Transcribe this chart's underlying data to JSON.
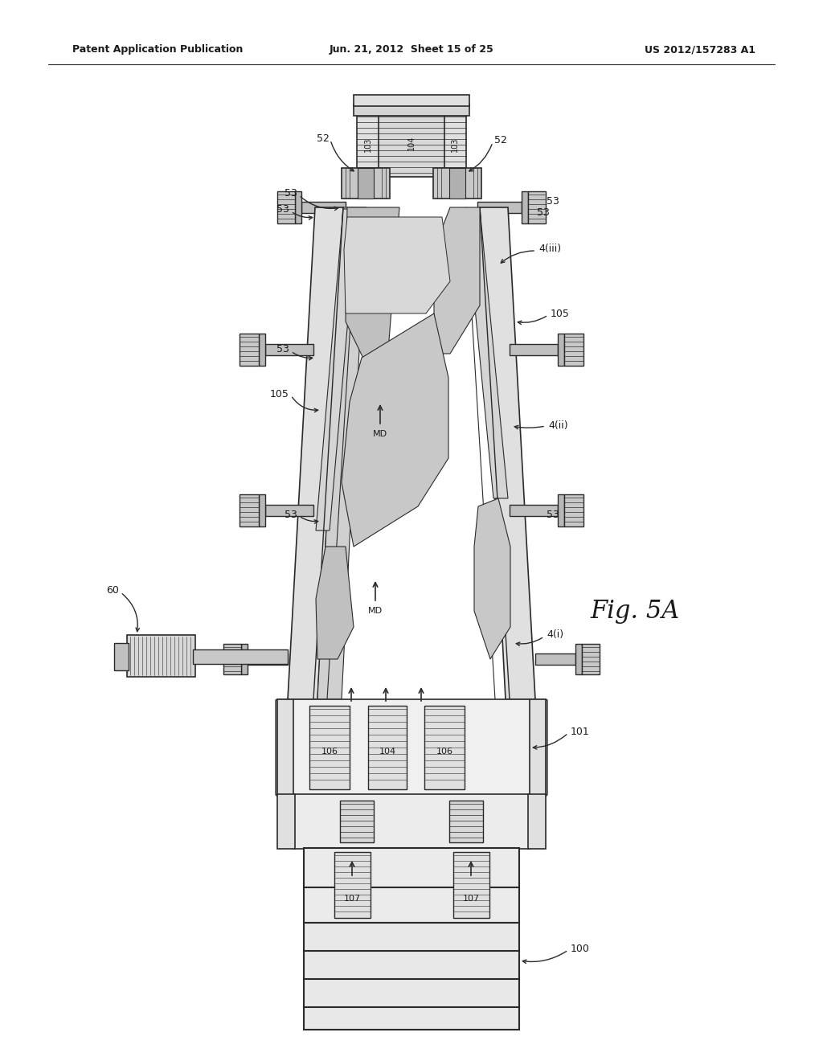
{
  "title_left": "Patent Application Publication",
  "title_center": "Jun. 21, 2012  Sheet 15 of 25",
  "title_right": "US 2012/157283 A1",
  "fig_label": "Fig. 5A",
  "bg": "#ffffff",
  "lc": "#2a2a2a",
  "fc_light": "#e8e8e8",
  "fc_mid": "#c8c8c8",
  "fc_dark": "#a8a8a8",
  "fc_stripe": "#d0d0d0"
}
